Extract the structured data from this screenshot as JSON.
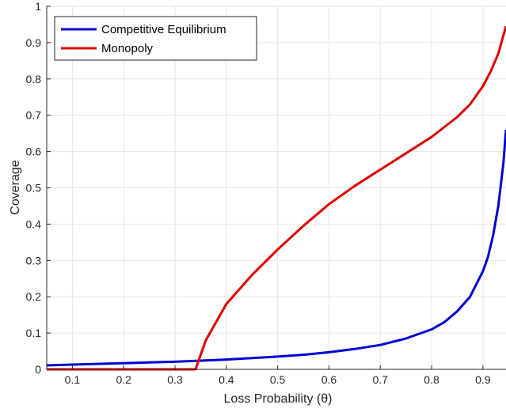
{
  "chart_data": {
    "type": "line",
    "xlabel": "Loss Probability (θ)",
    "ylabel": "Coverage",
    "xlim": [
      0.05,
      0.945
    ],
    "ylim": [
      0,
      1
    ],
    "xticks": [
      "0.1",
      "0.2",
      "0.3",
      "0.4",
      "0.5",
      "0.6",
      "0.7",
      "0.8",
      "0.9"
    ],
    "yticks": [
      "0",
      "0.1",
      "0.2",
      "0.3",
      "0.4",
      "0.5",
      "0.6",
      "0.7",
      "0.8",
      "0.9",
      "1"
    ],
    "grid": true,
    "legend_position": "top-left",
    "series": [
      {
        "name": "Competitive Equilibrium",
        "color": "#0000d6",
        "x": [
          0.05,
          0.1,
          0.15,
          0.2,
          0.25,
          0.3,
          0.35,
          0.4,
          0.45,
          0.5,
          0.55,
          0.6,
          0.65,
          0.7,
          0.75,
          0.8,
          0.825,
          0.85,
          0.875,
          0.9,
          0.91,
          0.92,
          0.93,
          0.94,
          0.945
        ],
        "y": [
          0.011,
          0.013,
          0.015,
          0.017,
          0.019,
          0.021,
          0.024,
          0.027,
          0.031,
          0.035,
          0.04,
          0.047,
          0.056,
          0.067,
          0.085,
          0.11,
          0.13,
          0.16,
          0.2,
          0.27,
          0.31,
          0.37,
          0.45,
          0.57,
          0.66
        ]
      },
      {
        "name": "Monopoly",
        "color": "#e00000",
        "x": [
          0.05,
          0.1,
          0.2,
          0.3,
          0.34,
          0.36,
          0.4,
          0.45,
          0.5,
          0.55,
          0.6,
          0.65,
          0.7,
          0.75,
          0.8,
          0.85,
          0.875,
          0.9,
          0.915,
          0.93,
          0.945
        ],
        "y": [
          0,
          0,
          0,
          0,
          0,
          0.08,
          0.18,
          0.26,
          0.33,
          0.395,
          0.455,
          0.505,
          0.55,
          0.595,
          0.64,
          0.695,
          0.73,
          0.78,
          0.82,
          0.87,
          0.945
        ]
      }
    ]
  }
}
